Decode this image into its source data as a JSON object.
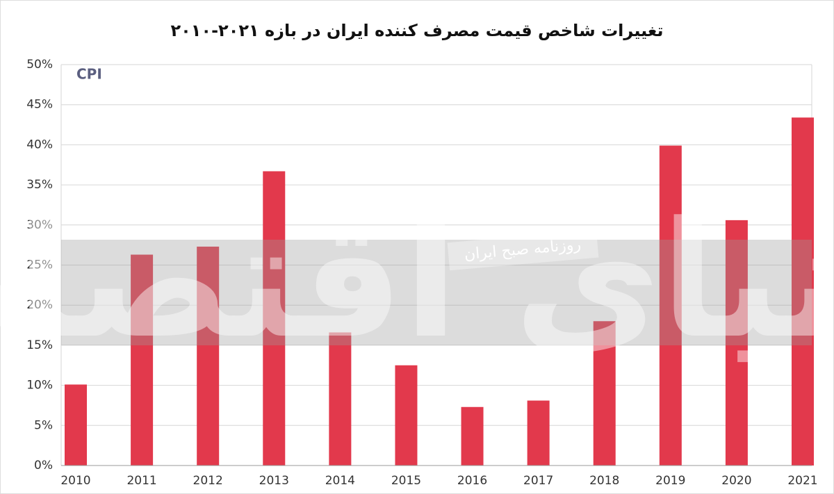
{
  "chart_data": {
    "type": "bar",
    "title": "تغییرات شاخص قیمت مصرف کننده ایران در بازه ۲۰۲۱-۲۰۱۰",
    "annotations": {
      "series_label": "CPI",
      "watermark_logo": "دنیای اقتصاد",
      "watermark_tagline": "روزنامه صبح ایران"
    },
    "categories": [
      "2010",
      "2011",
      "2012",
      "2013",
      "2014",
      "2015",
      "2016",
      "2017",
      "2018",
      "2019",
      "2020",
      "2021"
    ],
    "values": [
      10.1,
      26.3,
      27.3,
      36.7,
      16.6,
      12.5,
      7.3,
      8.1,
      18.0,
      39.9,
      30.6,
      43.4
    ],
    "color": "#e2394c",
    "ylim": [
      0,
      50
    ],
    "yticks": [
      {
        "value": 0,
        "label": "0%"
      },
      {
        "value": 5,
        "label": "5%"
      },
      {
        "value": 10,
        "label": "10%"
      },
      {
        "value": 15,
        "label": "15%"
      },
      {
        "value": 20,
        "label": "20%"
      },
      {
        "value": 25,
        "label": "25%"
      },
      {
        "value": 30,
        "label": "30%"
      },
      {
        "value": 35,
        "label": "35%"
      },
      {
        "value": 40,
        "label": "40%"
      },
      {
        "value": 45,
        "label": "45%"
      },
      {
        "value": 50,
        "label": "50%"
      }
    ],
    "grid": true
  }
}
